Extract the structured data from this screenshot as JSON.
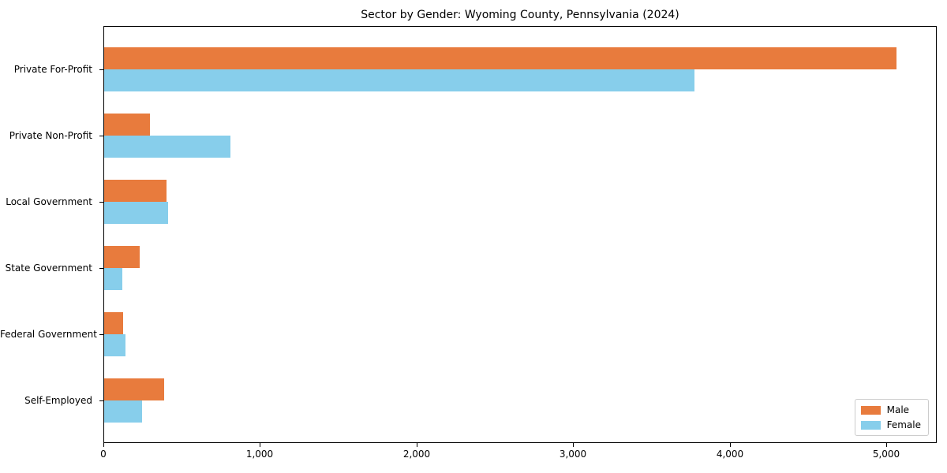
{
  "title": "Sector by Gender: Wyoming County, Pennsylvania (2024)",
  "colors": {
    "male": "#e87b3d",
    "female": "#87ceeb",
    "axis": "#000000",
    "legend_border": "#cccccc",
    "background": "#ffffff"
  },
  "legend": {
    "position": "lower right",
    "items": [
      {
        "label": "Male",
        "color": "#e87b3d"
      },
      {
        "label": "Female",
        "color": "#87ceeb"
      }
    ]
  },
  "chart_data": {
    "type": "bar",
    "orientation": "horizontal",
    "title": "Sector by Gender: Wyoming County, Pennsylvania (2024)",
    "xlabel": "",
    "ylabel": "",
    "grid": false,
    "legend_position": "lower right",
    "categories": [
      "Private For-Profit",
      "Private Non-Profit",
      "Local Government",
      "State Government",
      "Federal Government",
      "Self-Employed"
    ],
    "series": [
      {
        "name": "Male",
        "color": "#e87b3d",
        "values": [
          5060,
          290,
          400,
          225,
          120,
          385
        ]
      },
      {
        "name": "Female",
        "color": "#87ceeb",
        "values": [
          3770,
          805,
          410,
          115,
          135,
          240
        ]
      }
    ],
    "xlim": [
      0,
      5320
    ],
    "xticks": {
      "values": [
        0,
        1000,
        2000,
        3000,
        4000,
        5000
      ],
      "labels": [
        "0",
        "1,000",
        "2,000",
        "3,000",
        "4,000",
        "5,000"
      ]
    }
  }
}
